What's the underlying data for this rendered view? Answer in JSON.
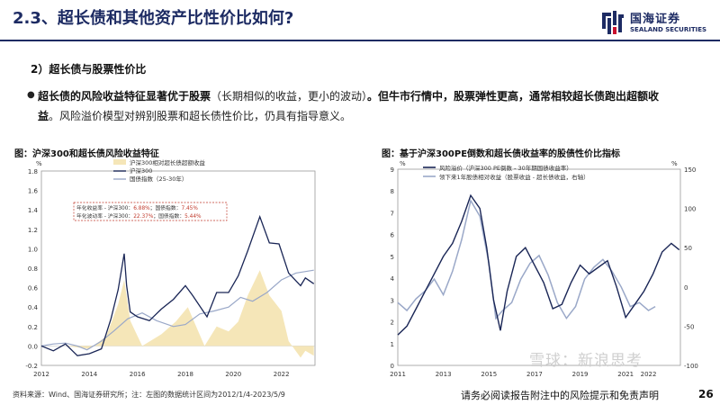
{
  "header": {
    "title": "2.3、超长债和其他资产比性价比如何?",
    "logo_cn": "国海证券",
    "logo_en": "SEALAND SECURITIES"
  },
  "section": {
    "subheading": "2）超长债与股票性价比",
    "para_bold_1": "超长债的风险收益特征显著优于股票",
    "para_plain_1": "（长期相似的收益，更小的波动）",
    "para_bold_2": "。但牛市行情中，股票弹性更高，通常相较超长债跑出超额收益",
    "para_plain_2": "。风险溢价模型对辨别股票和超长债性价比，仍具有指导意义。"
  },
  "figures": {
    "left_title": "图：沪深300和超长债风险收益特征",
    "right_title": "图：基于沪深300PE倒数和超长债收益率的股债性价比指标"
  },
  "footer": {
    "source": "资料来源：Wind、国海证券研究所；注：左图的数据统计区间为2012/1/4-2023/5/9",
    "disclaimer": "请务必阅读报告附注中的风险提示和免责声明",
    "page_number": "26",
    "watermark": "雪球：新浪思考"
  },
  "colors": {
    "brand_navy": "#1d2b63",
    "series_navy": "#1a2656",
    "series_light": "#9aa8c8",
    "area_yellow": "#f5e6b8"
  },
  "chart_data": [
    {
      "type": "line",
      "title": "图：沪深300和超长债风险收益特征",
      "y_unit": "%",
      "ylim": [
        -0.2,
        1.8
      ],
      "yticks": [
        "1.8",
        "1.6",
        "1.4",
        "1.2",
        "1.0",
        "0.8",
        "0.6",
        "0.4",
        "0.2",
        "0.0",
        "-0.2"
      ],
      "xlim": [
        2012,
        2023.4
      ],
      "xticks": [
        "2012",
        "2014",
        "2016",
        "2018",
        "2020",
        "2022"
      ],
      "legend": [
        "沪深300相对超长债超额收益",
        "沪深300",
        "国债指数（25-30年）"
      ],
      "annotations": [
        {
          "label": "年化收益率 - 沪深300：",
          "v1": "6.88%",
          "sep": "；国债指数：",
          "v2": "7.45%"
        },
        {
          "label": "年化波动率 - 沪深300：",
          "v1": "22.37%",
          "sep": "；国债指数：",
          "v2": "5.44%"
        }
      ],
      "series": [
        {
          "name": "沪深300",
          "x": [
            2012.0,
            2012.5,
            2013.0,
            2013.5,
            2014.0,
            2014.5,
            2014.9,
            2015.2,
            2015.45,
            2015.55,
            2015.7,
            2016.0,
            2016.5,
            2017.0,
            2017.5,
            2018.0,
            2018.3,
            2018.9,
            2019.3,
            2019.8,
            2020.2,
            2020.6,
            2021.1,
            2021.5,
            2021.9,
            2022.3,
            2022.8,
            2023.0,
            2023.35
          ],
          "y": [
            0.0,
            -0.05,
            0.02,
            -0.1,
            -0.08,
            -0.03,
            0.28,
            0.58,
            0.95,
            0.62,
            0.35,
            0.3,
            0.26,
            0.38,
            0.48,
            0.62,
            0.52,
            0.3,
            0.55,
            0.55,
            0.72,
            0.98,
            1.33,
            1.06,
            1.05,
            0.75,
            0.62,
            0.7,
            0.64
          ]
        },
        {
          "name": "国债指数（25-30年）",
          "x": [
            2012.0,
            2012.5,
            2013.0,
            2013.5,
            2013.9,
            2014.5,
            2015.0,
            2015.6,
            2016.2,
            2016.8,
            2017.5,
            2018.0,
            2018.6,
            2019.2,
            2019.8,
            2020.3,
            2020.8,
            2021.4,
            2022.0,
            2022.6,
            2023.35
          ],
          "y": [
            0.0,
            0.02,
            0.03,
            0.0,
            -0.04,
            0.05,
            0.15,
            0.28,
            0.34,
            0.26,
            0.2,
            0.22,
            0.33,
            0.36,
            0.4,
            0.5,
            0.46,
            0.55,
            0.68,
            0.75,
            0.78
          ]
        },
        {
          "name": "沪深300相对超长债超额收益",
          "x": [
            2012.0,
            2013.0,
            2014.0,
            2014.7,
            2015.2,
            2015.45,
            2015.7,
            2016.2,
            2017.0,
            2017.6,
            2018.1,
            2018.8,
            2019.3,
            2019.8,
            2020.2,
            2020.6,
            2021.1,
            2021.5,
            2022.0,
            2022.3,
            2022.8,
            2023.0,
            2023.35
          ],
          "y": [
            0.0,
            0.0,
            -0.03,
            0.1,
            0.43,
            0.68,
            0.26,
            0.0,
            0.12,
            0.25,
            0.4,
            0.0,
            0.2,
            0.15,
            0.25,
            0.52,
            0.78,
            0.52,
            0.36,
            0.05,
            -0.12,
            -0.05,
            -0.1
          ]
        }
      ]
    },
    {
      "type": "line",
      "title": "图：基于沪深300PE倒数和超长债收益率的股债性价比指标",
      "y_unit_left": "%",
      "y_unit_right": "%",
      "ylim_left": [
        0,
        9
      ],
      "yticks_left": [
        "9",
        "8",
        "7",
        "6",
        "5",
        "4",
        "3",
        "2",
        "1",
        "0"
      ],
      "ylim_right": [
        -100,
        150
      ],
      "yticks_right": [
        "150",
        "100",
        "50",
        "0",
        "-50",
        "-100"
      ],
      "xlim": [
        2011,
        2023.4
      ],
      "xticks": [
        "2011",
        "2013",
        "2015",
        "2017",
        "2019",
        "2021",
        "2022"
      ],
      "legend": [
        "风险溢价（沪深300 PE倒数 - 30年期国债收益率）",
        "领下来1年股债相对收益（股票收益 - 超长债收益，右轴）"
      ],
      "series": [
        {
          "name": "风险溢价（沪深300 PE倒数 - 30年期国债收益率）",
          "axis": "left",
          "x": [
            2011.0,
            2011.4,
            2011.8,
            2012.2,
            2012.6,
            2013.0,
            2013.4,
            2013.8,
            2014.2,
            2014.6,
            2014.9,
            2015.2,
            2015.5,
            2015.8,
            2016.2,
            2016.6,
            2017.0,
            2017.4,
            2017.8,
            2018.2,
            2018.6,
            2019.0,
            2019.4,
            2019.8,
            2020.2,
            2020.6,
            2021.0,
            2021.4,
            2021.8,
            2022.2,
            2022.6,
            2023.0,
            2023.35
          ],
          "y": [
            1.4,
            1.8,
            2.6,
            3.4,
            4.2,
            5.0,
            5.6,
            6.6,
            7.8,
            7.2,
            5.4,
            3.0,
            1.6,
            3.4,
            5.0,
            5.4,
            4.6,
            3.8,
            2.6,
            2.8,
            3.8,
            4.6,
            4.2,
            4.5,
            4.8,
            3.6,
            2.2,
            2.8,
            3.4,
            4.2,
            5.2,
            5.6,
            5.3
          ]
        },
        {
          "name": "领下来1年股债相对收益（股票收益 - 超长债收益，右轴）",
          "axis": "right",
          "x": [
            2011.0,
            2011.4,
            2011.8,
            2012.2,
            2012.6,
            2013.0,
            2013.4,
            2013.8,
            2014.2,
            2014.6,
            2015.0,
            2015.3,
            2015.6,
            2016.0,
            2016.4,
            2016.8,
            2017.2,
            2017.6,
            2018.0,
            2018.4,
            2018.8,
            2019.2,
            2019.6,
            2020.0,
            2020.4,
            2020.8,
            2021.2,
            2021.6,
            2022.0,
            2022.3
          ],
          "y": [
            -20,
            -30,
            -15,
            -5,
            10,
            -10,
            20,
            60,
            110,
            90,
            30,
            -40,
            -30,
            -20,
            10,
            30,
            40,
            15,
            -20,
            -40,
            -25,
            10,
            25,
            35,
            20,
            0,
            -25,
            -20,
            -30,
            -25
          ]
        }
      ]
    }
  ]
}
